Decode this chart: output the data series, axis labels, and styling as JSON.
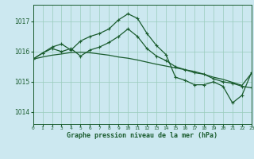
{
  "title": "Graphe pression niveau de la mer (hPa)",
  "xlim": [
    0,
    23
  ],
  "ylim": [
    1013.6,
    1017.55
  ],
  "yticks": [
    1014,
    1015,
    1016,
    1017
  ],
  "xticks": [
    0,
    1,
    2,
    3,
    4,
    5,
    6,
    7,
    8,
    9,
    10,
    11,
    12,
    13,
    14,
    15,
    16,
    17,
    18,
    19,
    20,
    21,
    22,
    23
  ],
  "background_color": "#cce8f0",
  "grid_color": "#99ccbb",
  "line_color": "#1a5c2e",
  "series_jagged": [
    1015.75,
    1015.95,
    1016.15,
    1016.25,
    1016.05,
    1016.35,
    1016.5,
    1016.6,
    1016.75,
    1017.05,
    1017.25,
    1017.1,
    1016.6,
    1016.2,
    1015.9,
    1015.15,
    1015.05,
    1014.9,
    1014.9,
    1015.0,
    1014.85,
    1014.3,
    1014.55,
    1015.3
  ],
  "series_mid": [
    1015.75,
    1015.95,
    1016.1,
    1016.0,
    1016.1,
    1015.85,
    1016.05,
    1016.15,
    1016.3,
    1016.5,
    1016.75,
    1016.5,
    1016.1,
    1015.85,
    1015.7,
    1015.5,
    1015.4,
    1015.3,
    1015.25,
    1015.1,
    1015.0,
    1014.95,
    1014.85,
    1014.8
  ],
  "series_linear": [
    1015.75,
    1015.82,
    1015.88,
    1015.92,
    1015.97,
    1015.98,
    1015.96,
    1015.92,
    1015.88,
    1015.82,
    1015.78,
    1015.72,
    1015.65,
    1015.58,
    1015.52,
    1015.46,
    1015.4,
    1015.34,
    1015.25,
    1015.15,
    1015.08,
    1014.98,
    1014.88,
    1015.28
  ]
}
